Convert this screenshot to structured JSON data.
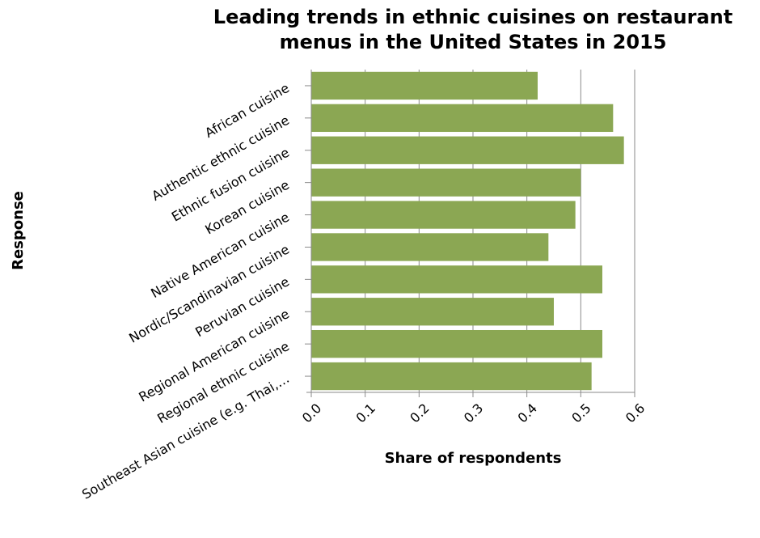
{
  "chart_data": {
    "type": "bar",
    "orientation": "horizontal",
    "title_lines": [
      "Leading trends in ethnic cuisines on restaurant",
      "menus in the United States in 2015"
    ],
    "xlabel": "Share of respondents",
    "ylabel": "Response",
    "xlim": [
      0,
      0.6
    ],
    "xticks": [
      "0.0",
      "0.1",
      "0.2",
      "0.3",
      "0.4",
      "0.5",
      "0.6"
    ],
    "xtick_values": [
      0,
      0.1,
      0.2,
      0.3,
      0.4,
      0.5,
      0.6
    ],
    "grid": true,
    "bar_color": "#8ba753",
    "categories": [
      "African cuisine",
      "Authentic ethnic cuisine",
      "Ethnic fusion cuisine",
      "Korean cuisine",
      "Native American cuisine",
      "Nordic/Scandinavian cuisine",
      "Peruvian cuisine",
      "Regional American cuisine",
      "Regional ethnic cuisine",
      "Southeast Asian cuisine (e.g. Thai,…"
    ],
    "values": [
      0.42,
      0.56,
      0.58,
      0.5,
      0.49,
      0.44,
      0.54,
      0.45,
      0.54,
      0.52
    ]
  }
}
